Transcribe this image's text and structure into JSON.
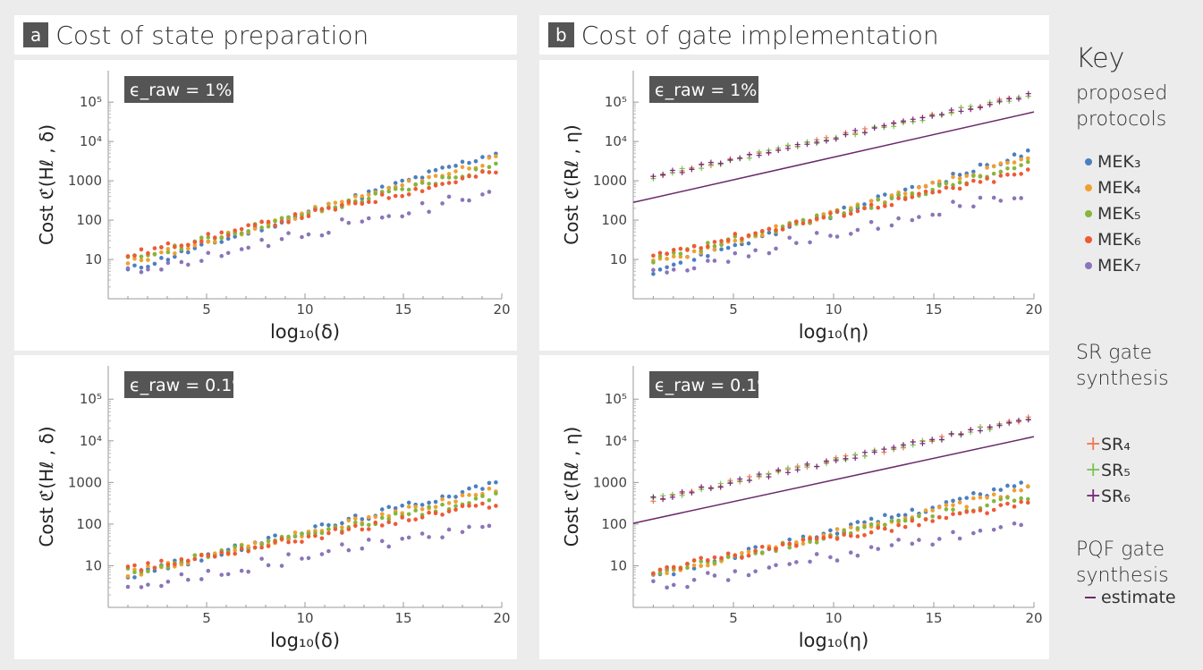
{
  "panels": {
    "a": {
      "letter": "a",
      "title": "Cost of state preparation"
    },
    "b": {
      "letter": "b",
      "title": "Cost of gate implementation"
    }
  },
  "key": {
    "title": "Key",
    "group1": [
      "proposed",
      "protocols"
    ],
    "group2": [
      "SR gate",
      "synthesis"
    ],
    "group3": [
      "PQF gate",
      "synthesis"
    ],
    "items_mek": [
      {
        "label": "MEK₃",
        "color": "#4c7fc0"
      },
      {
        "label": "MEK₄",
        "color": "#f0a030"
      },
      {
        "label": "MEK₅",
        "color": "#86b63c"
      },
      {
        "label": "MEK₆",
        "color": "#ee5a35"
      },
      {
        "label": "MEK₇",
        "color": "#8b75b8"
      }
    ],
    "items_sr": [
      {
        "label": "SR₄",
        "color": "#ee7a50"
      },
      {
        "label": "SR₅",
        "color": "#7cc456"
      },
      {
        "label": "SR₆",
        "color": "#7a2a7e"
      }
    ],
    "items_pqf": [
      {
        "label": "estimate",
        "color": "#6a2a6a"
      }
    ]
  },
  "chart_data": [
    {
      "type": "scatter",
      "id": "a-top",
      "badge": "ϵ_raw = 1%",
      "ylabel": "Cost ℭ(Hℓ , δ)",
      "xlabel": "log₁₀(δ)",
      "xlim": [
        0,
        20
      ],
      "ylim_log10": [
        0,
        5.8
      ],
      "xticks": [
        5,
        10,
        15,
        20
      ],
      "yticks": [
        {
          "v": 1,
          "l": "10"
        },
        {
          "v": 2,
          "l": "100"
        },
        {
          "v": 3,
          "l": "1000"
        },
        {
          "v": 4,
          "l": "10⁴"
        },
        {
          "v": 5,
          "l": "10⁵"
        }
      ],
      "max_log10": [
        3.6,
        3.45,
        3.3,
        3.15,
        2.72
      ],
      "min_log10": [
        0.72,
        0.9,
        1.0,
        1.1,
        0.72
      ],
      "badge_pos": "top-left",
      "has_sr": false,
      "has_pqf": false
    },
    {
      "type": "scatter",
      "id": "a-bottom",
      "badge": "ϵ_raw = 0.1%",
      "ylabel": "Cost ℭ(Hℓ , δ)",
      "xlabel": "log₁₀(δ)",
      "xlim": [
        0,
        20
      ],
      "ylim_log10": [
        0,
        5.8
      ],
      "xticks": [
        5,
        10,
        15,
        20
      ],
      "yticks": [
        {
          "v": 1,
          "l": "10"
        },
        {
          "v": 2,
          "l": "100"
        },
        {
          "v": 3,
          "l": "1000"
        },
        {
          "v": 4,
          "l": "10⁴"
        },
        {
          "v": 5,
          "l": "10⁵"
        }
      ],
      "max_log10": [
        2.9,
        2.75,
        2.6,
        2.45,
        2.05
      ],
      "min_log10": [
        0.75,
        0.8,
        0.85,
        0.9,
        0.55
      ],
      "badge_pos": "top-left",
      "has_sr": false,
      "has_pqf": false
    },
    {
      "type": "scatter",
      "id": "b-top",
      "badge": "ϵ_raw = 1%",
      "ylabel": "Cost ℭ(Rℓ , η)",
      "xlabel": "log₁₀(η)",
      "xlim": [
        0,
        20
      ],
      "ylim_log10": [
        0,
        5.8
      ],
      "xticks": [
        5,
        10,
        15,
        20
      ],
      "yticks": [
        {
          "v": 1,
          "l": "10"
        },
        {
          "v": 2,
          "l": "100"
        },
        {
          "v": 3,
          "l": "1000"
        },
        {
          "v": 4,
          "l": "10⁴"
        },
        {
          "v": 5,
          "l": "10⁵"
        }
      ],
      "max_log10": [
        3.6,
        3.45,
        3.3,
        3.15,
        2.72
      ],
      "min_log10": [
        0.72,
        0.9,
        1.0,
        1.1,
        0.72
      ],
      "badge_pos": "top-left",
      "has_sr": true,
      "sr_range_log10": [
        3.1,
        5.1
      ],
      "has_pqf": true,
      "pqf_log10": [
        2.45,
        4.75
      ]
    },
    {
      "type": "scatter",
      "id": "b-bottom",
      "badge": "ϵ_raw = 0.1%",
      "ylabel": "Cost ℭ(Rℓ , η)",
      "xlabel": "log₁₀(η)",
      "xlim": [
        0,
        20
      ],
      "ylim_log10": [
        0,
        5.8
      ],
      "xticks": [
        5,
        10,
        15,
        20
      ],
      "yticks": [
        {
          "v": 1,
          "l": "10"
        },
        {
          "v": 2,
          "l": "100"
        },
        {
          "v": 3,
          "l": "1000"
        },
        {
          "v": 4,
          "l": "10⁴"
        },
        {
          "v": 5,
          "l": "10⁵"
        }
      ],
      "max_log10": [
        2.9,
        2.75,
        2.6,
        2.45,
        2.05
      ],
      "min_log10": [
        0.75,
        0.8,
        0.85,
        0.9,
        0.55
      ],
      "badge_pos": "top-left",
      "has_sr": true,
      "sr_range_log10": [
        2.6,
        4.45
      ],
      "has_pqf": true,
      "pqf_log10": [
        2.02,
        4.1
      ]
    }
  ]
}
